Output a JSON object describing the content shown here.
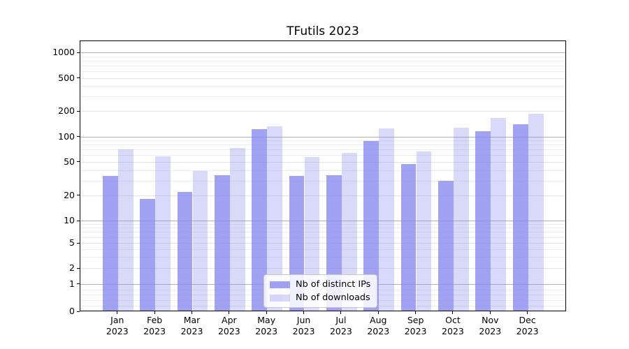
{
  "title": "TFutils 2023",
  "chart_data": {
    "type": "bar",
    "title": "TFutils 2023",
    "categories": [
      "Jan",
      "Feb",
      "Mar",
      "Apr",
      "May",
      "Jun",
      "Jul",
      "Aug",
      "Sep",
      "Oct",
      "Nov",
      "Dec"
    ],
    "category_year": "2023",
    "series": [
      {
        "name": "Nb of distinct IPs",
        "color": "rgba(136,136,238,0.78)",
        "values": [
          34,
          18,
          22,
          35,
          122,
          34,
          35,
          89,
          47,
          30,
          115,
          140
        ]
      },
      {
        "name": "Nb of downloads",
        "color": "rgba(136,136,238,0.32)",
        "values": [
          70,
          58,
          39,
          73,
          133,
          57,
          64,
          124,
          66,
          127,
          168,
          188
        ]
      }
    ],
    "yscale": "symlog",
    "yticks": [
      1000,
      500,
      200,
      100,
      50,
      20,
      10,
      5,
      2,
      1,
      0
    ],
    "ylim": [
      0,
      1360
    ],
    "grid": true,
    "legend_position": "lower center",
    "grid_levels": {
      "major": [
        1,
        10,
        100,
        1000
      ],
      "mid": [
        2,
        5,
        20,
        50,
        200,
        500
      ],
      "minor": [
        0.2,
        0.4,
        0.6,
        0.8,
        3,
        4,
        6,
        7,
        8,
        9,
        30,
        40,
        60,
        70,
        80,
        90,
        300,
        400,
        600,
        700,
        800,
        900
      ]
    }
  },
  "colors": {
    "bar_base": "#8888ee",
    "grid_major": "#b0b0b0",
    "grid_mid": "#e2e2e2",
    "grid_minor": "#ececec",
    "spine": "#000000"
  }
}
